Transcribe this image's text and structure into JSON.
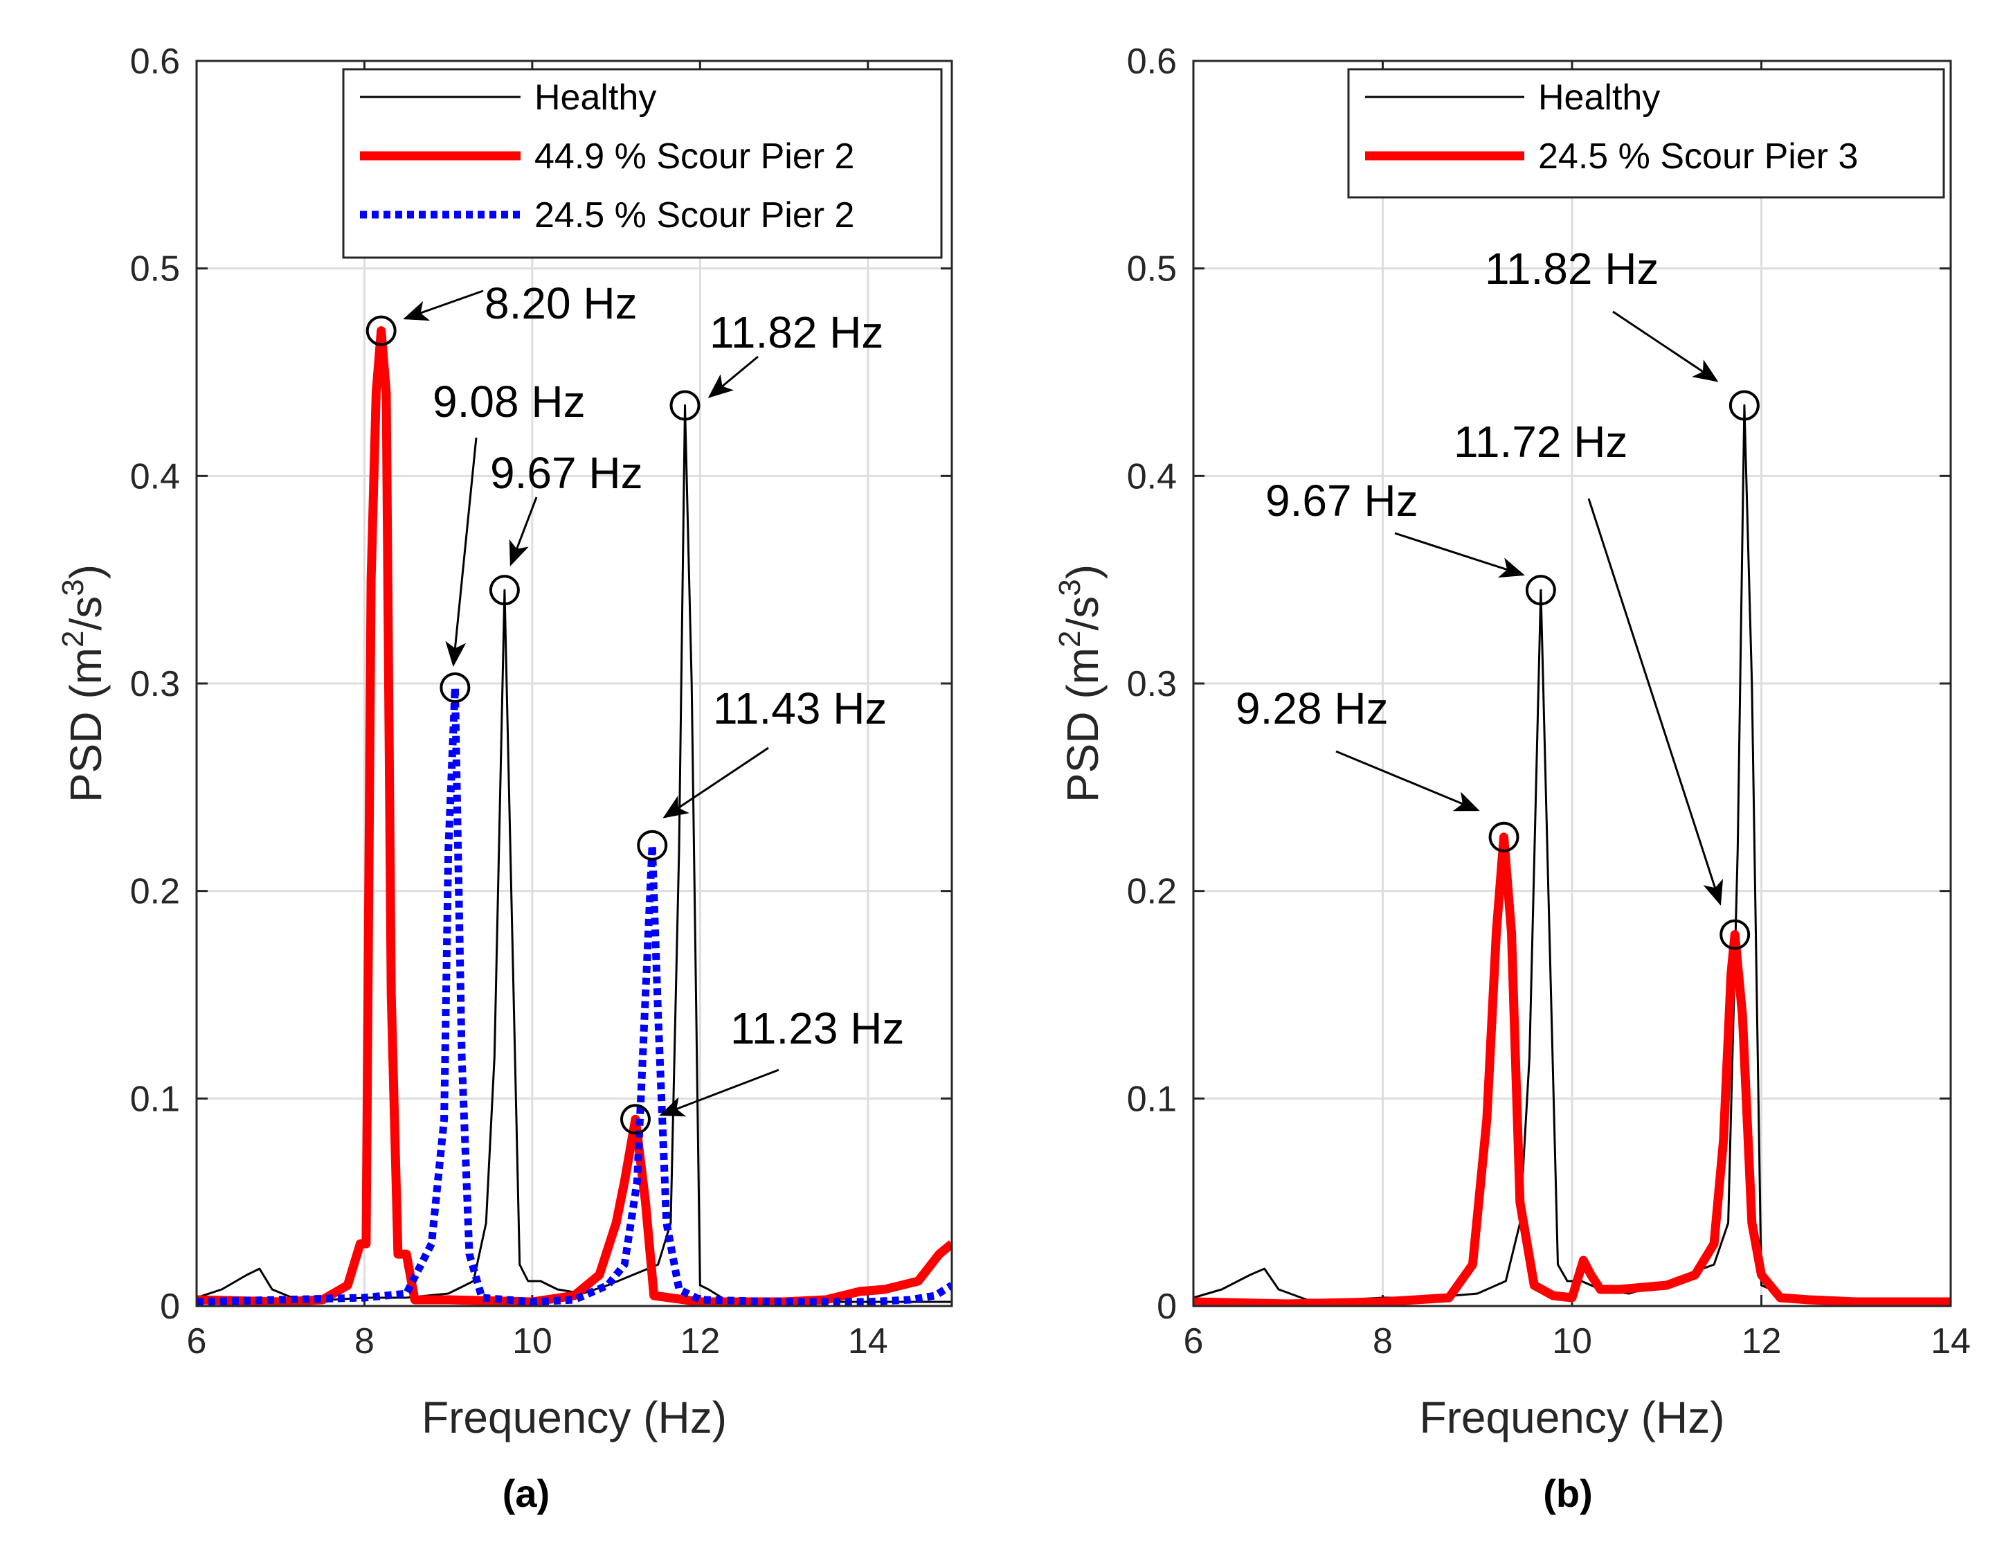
{
  "chart_data": [
    {
      "panel": "a",
      "type": "line",
      "sublabel": "(a)",
      "xlabel": "Frequency (Hz)",
      "ylabel": "PSD (m",
      "ylabel_exp1": "2",
      "ylabel_mid": "/s",
      "ylabel_exp2": "3",
      "ylabel_end": ")",
      "xlim": [
        6,
        15
      ],
      "ylim": [
        0,
        0.6
      ],
      "xticks": [
        "6",
        "8",
        "10",
        "12",
        "14"
      ],
      "yticks": [
        "0",
        "0.1",
        "0.2",
        "0.3",
        "0.4",
        "0.5",
        "0.6"
      ],
      "grid": true,
      "legend_position": "top-right",
      "series": [
        {
          "name": "Healthy",
          "color": "#000000",
          "style": "thin",
          "x": [
            6.0,
            6.3,
            6.6,
            6.75,
            6.9,
            7.2,
            7.6,
            8.0,
            8.5,
            9.0,
            9.3,
            9.45,
            9.55,
            9.67,
            9.75,
            9.85,
            9.95,
            10.1,
            10.3,
            10.6,
            10.9,
            11.2,
            11.5,
            11.65,
            11.75,
            11.82,
            11.9,
            12.0,
            12.1,
            12.3,
            13.0,
            14.0,
            15.0
          ],
          "y": [
            0.004,
            0.008,
            0.015,
            0.018,
            0.008,
            0.003,
            0.003,
            0.004,
            0.004,
            0.006,
            0.012,
            0.04,
            0.12,
            0.345,
            0.2,
            0.02,
            0.012,
            0.012,
            0.008,
            0.006,
            0.01,
            0.015,
            0.02,
            0.04,
            0.22,
            0.434,
            0.3,
            0.01,
            0.008,
            0.003,
            0.002,
            0.002,
            0.002
          ]
        },
        {
          "name": "44.9 % Scour Pier 2",
          "color": "#ff0000",
          "style": "thick",
          "x": [
            6.0,
            7.0,
            7.5,
            7.8,
            7.95,
            8.02,
            8.08,
            8.14,
            8.2,
            8.26,
            8.32,
            8.4,
            8.5,
            8.6,
            9.0,
            10.0,
            10.5,
            10.8,
            11.0,
            11.1,
            11.23,
            11.35,
            11.45,
            12.0,
            13.0,
            13.5,
            13.9,
            14.2,
            14.6,
            14.85,
            15.0
          ],
          "y": [
            0.003,
            0.002,
            0.003,
            0.01,
            0.03,
            0.03,
            0.35,
            0.44,
            0.47,
            0.44,
            0.15,
            0.025,
            0.025,
            0.003,
            0.003,
            0.002,
            0.005,
            0.015,
            0.04,
            0.06,
            0.09,
            0.05,
            0.005,
            0.002,
            0.002,
            0.003,
            0.007,
            0.008,
            0.012,
            0.025,
            0.03
          ]
        },
        {
          "name": "24.5 % Scour Pier 2",
          "color": "#0000ff",
          "style": "dotted",
          "x": [
            6.0,
            8.0,
            8.5,
            8.8,
            8.95,
            9.0,
            9.08,
            9.16,
            9.25,
            9.4,
            10.0,
            10.5,
            10.9,
            11.1,
            11.25,
            11.35,
            11.43,
            11.5,
            11.6,
            11.75,
            12.0,
            13.0,
            14.0,
            14.5,
            14.8,
            15.0
          ],
          "y": [
            0.002,
            0.004,
            0.006,
            0.03,
            0.09,
            0.22,
            0.298,
            0.12,
            0.025,
            0.004,
            0.002,
            0.003,
            0.01,
            0.02,
            0.06,
            0.15,
            0.222,
            0.14,
            0.04,
            0.008,
            0.003,
            0.002,
            0.002,
            0.003,
            0.005,
            0.01
          ]
        }
      ],
      "markers": [
        {
          "x": 8.2,
          "y": 0.47,
          "label": "8.20 Hz"
        },
        {
          "x": 9.08,
          "y": 0.298,
          "label": "9.08 Hz"
        },
        {
          "x": 9.67,
          "y": 0.345,
          "label": "9.67 Hz"
        },
        {
          "x": 11.82,
          "y": 0.434,
          "label": "11.82 Hz"
        },
        {
          "x": 11.43,
          "y": 0.222,
          "label": "11.43 Hz"
        },
        {
          "x": 11.23,
          "y": 0.09,
          "label": "11.23 Hz"
        }
      ]
    },
    {
      "panel": "b",
      "type": "line",
      "sublabel": "(b)",
      "xlabel": "Frequency (Hz)",
      "ylabel": "PSD (m",
      "ylabel_exp1": "2",
      "ylabel_mid": "/s",
      "ylabel_exp2": "3",
      "ylabel_end": ")",
      "xlim": [
        6,
        14
      ],
      "ylim": [
        0,
        0.6
      ],
      "xticks": [
        "6",
        "8",
        "10",
        "12",
        "14"
      ],
      "yticks": [
        "0",
        "0.1",
        "0.2",
        "0.3",
        "0.4",
        "0.5",
        "0.6"
      ],
      "grid": true,
      "legend_position": "top-right",
      "series": [
        {
          "name": "Healthy",
          "color": "#000000",
          "style": "thin",
          "x": [
            6.0,
            6.3,
            6.6,
            6.75,
            6.9,
            7.2,
            7.6,
            8.0,
            8.5,
            9.0,
            9.3,
            9.45,
            9.55,
            9.67,
            9.75,
            9.85,
            9.95,
            10.1,
            10.3,
            10.6,
            10.9,
            11.2,
            11.5,
            11.65,
            11.75,
            11.82,
            11.9,
            12.0,
            12.1,
            12.3,
            13.0,
            14.0
          ],
          "y": [
            0.004,
            0.008,
            0.015,
            0.018,
            0.008,
            0.003,
            0.003,
            0.004,
            0.004,
            0.006,
            0.012,
            0.04,
            0.12,
            0.345,
            0.2,
            0.02,
            0.012,
            0.012,
            0.008,
            0.006,
            0.01,
            0.015,
            0.02,
            0.04,
            0.22,
            0.434,
            0.3,
            0.01,
            0.008,
            0.003,
            0.002,
            0.002
          ]
        },
        {
          "name": "24.5 % Scour Pier 3",
          "color": "#ff0000",
          "style": "thick",
          "x": [
            6.0,
            7.0,
            8.0,
            8.7,
            8.95,
            9.1,
            9.2,
            9.28,
            9.36,
            9.45,
            9.6,
            9.8,
            10.0,
            10.12,
            10.2,
            10.3,
            10.5,
            11.0,
            11.3,
            11.5,
            11.6,
            11.68,
            11.72,
            11.8,
            11.9,
            12.0,
            12.2,
            12.5,
            13.0,
            14.0
          ],
          "y": [
            0.002,
            0.001,
            0.002,
            0.004,
            0.02,
            0.09,
            0.18,
            0.226,
            0.18,
            0.05,
            0.01,
            0.005,
            0.004,
            0.022,
            0.015,
            0.008,
            0.008,
            0.01,
            0.015,
            0.03,
            0.08,
            0.16,
            0.179,
            0.14,
            0.04,
            0.015,
            0.004,
            0.003,
            0.002,
            0.002
          ]
        }
      ],
      "markers": [
        {
          "x": 11.82,
          "y": 0.434,
          "label": "11.82 Hz"
        },
        {
          "x": 9.67,
          "y": 0.345,
          "label": "9.67 Hz"
        },
        {
          "x": 11.72,
          "y": 0.179,
          "label": "11.72 Hz"
        },
        {
          "x": 9.28,
          "y": 0.226,
          "label": "9.28 Hz"
        }
      ]
    }
  ]
}
